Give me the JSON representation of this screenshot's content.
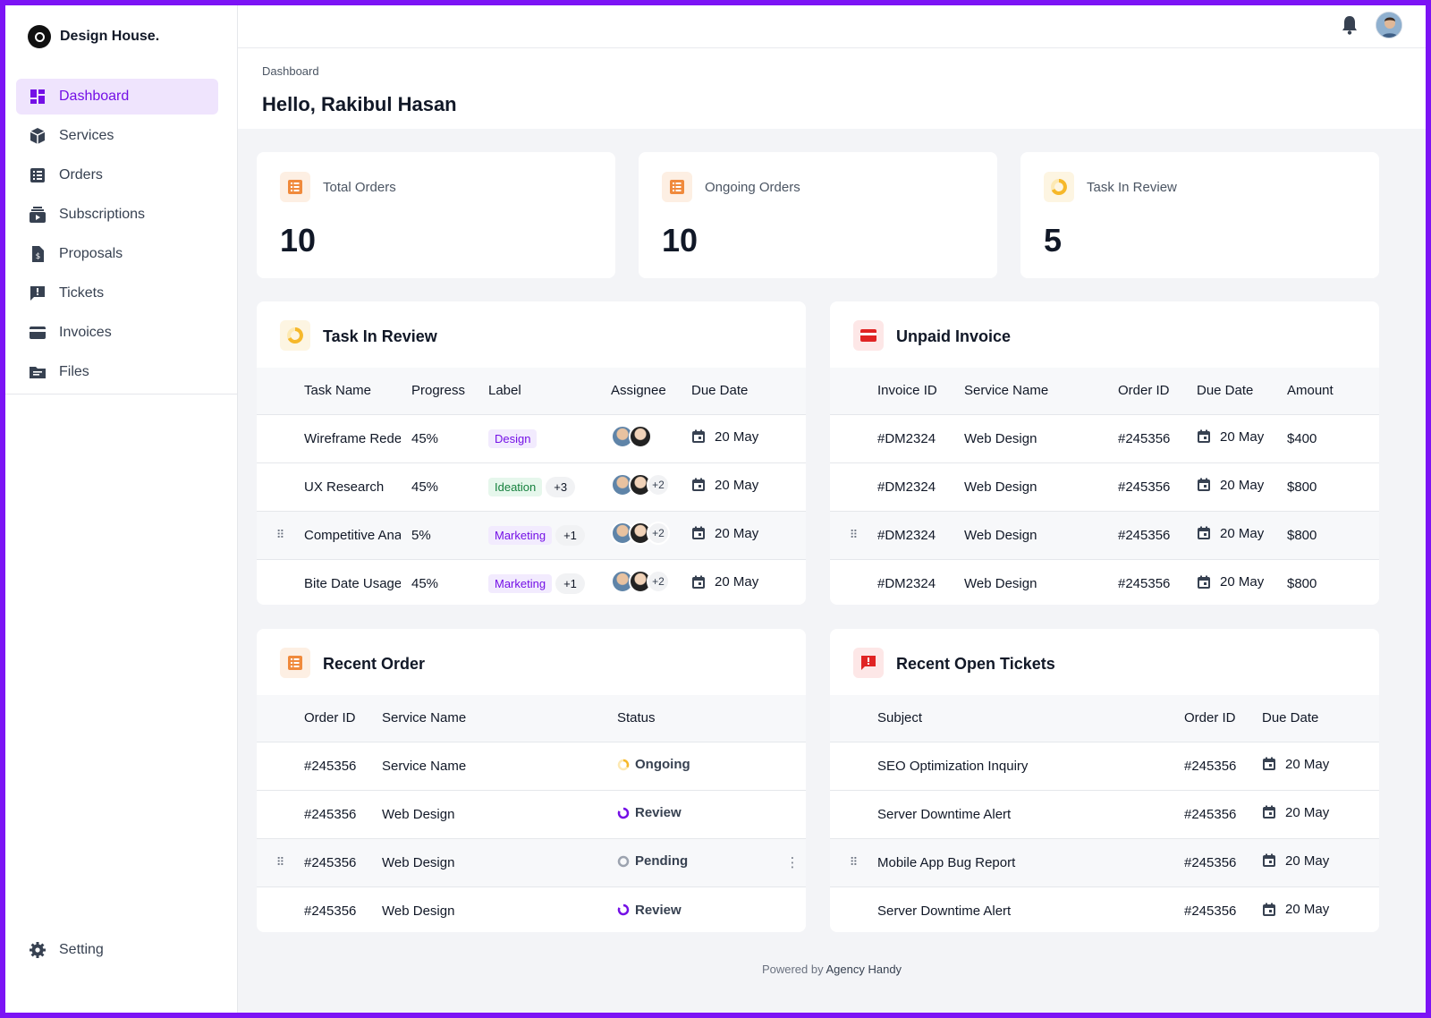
{
  "app": {
    "name": "Design House."
  },
  "nav": {
    "items": [
      {
        "label": "Dashboard",
        "icon": "dashboard-icon"
      },
      {
        "label": "Services",
        "icon": "box-icon"
      },
      {
        "label": "Orders",
        "icon": "list-icon"
      },
      {
        "label": "Subscriptions",
        "icon": "subscriptions-icon"
      },
      {
        "label": "Proposals",
        "icon": "proposal-icon"
      },
      {
        "label": "Tickets",
        "icon": "ticket-icon"
      },
      {
        "label": "Invoices",
        "icon": "card-icon"
      },
      {
        "label": "Files",
        "icon": "folder-icon"
      }
    ],
    "setting": "Setting"
  },
  "header": {
    "breadcrumb": "Dashboard",
    "greeting": "Hello, Rakibul Hasan"
  },
  "stats": [
    {
      "label": "Total Orders",
      "value": "10"
    },
    {
      "label": "Ongoing Orders",
      "value": "10"
    },
    {
      "label": "Task In Review",
      "value": "5"
    }
  ],
  "tasks": {
    "title": "Task In Review",
    "columns": [
      "Task Name",
      "Progress",
      "Label",
      "Assignee",
      "Due Date"
    ],
    "rows": [
      {
        "name": "Wireframe Redesign",
        "progress": "45%",
        "label": "Design",
        "extra_labels": "",
        "extra_assignees": "",
        "due": "20 May"
      },
      {
        "name": "UX Research",
        "progress": "45%",
        "label": "Ideation",
        "extra_labels": "+3",
        "extra_assignees": "+2",
        "due": "20 May"
      },
      {
        "name": "Competitive Analysis",
        "progress": "5%",
        "label": "Marketing",
        "extra_labels": "+1",
        "extra_assignees": "+2",
        "due": "20 May"
      },
      {
        "name": "Bite Date Usage",
        "progress": "45%",
        "label": "Marketing",
        "extra_labels": "+1",
        "extra_assignees": "+2",
        "due": "20 May"
      }
    ]
  },
  "invoices": {
    "title": "Unpaid Invoice",
    "columns": [
      "Invoice ID",
      "Service Name",
      "Order ID",
      "Due Date",
      "Amount"
    ],
    "rows": [
      {
        "invoice": "#DM2324",
        "service": "Web Design",
        "order": "#245356",
        "due": "20 May",
        "amount": "$400"
      },
      {
        "invoice": "#DM2324",
        "service": "Web Design",
        "order": "#245356",
        "due": "20 May",
        "amount": "$800"
      },
      {
        "invoice": "#DM2324",
        "service": "Web Design",
        "order": "#245356",
        "due": "20 May",
        "amount": "$800"
      },
      {
        "invoice": "#DM2324",
        "service": "Web Design",
        "order": "#245356",
        "due": "20 May",
        "amount": "$800"
      }
    ]
  },
  "orders": {
    "title": "Recent Order",
    "columns": [
      "Order ID",
      "Service Name",
      "Status"
    ],
    "rows": [
      {
        "order": "#245356",
        "service": "Service Name",
        "status": "Ongoing"
      },
      {
        "order": "#245356",
        "service": "Web Design",
        "status": "Review"
      },
      {
        "order": "#245356",
        "service": "Web Design",
        "status": "Pending"
      },
      {
        "order": "#245356",
        "service": "Web Design",
        "status": "Review"
      }
    ]
  },
  "tickets": {
    "title": "Recent Open Tickets",
    "columns": [
      "Subject",
      "Order ID",
      "Due Date"
    ],
    "rows": [
      {
        "subject": "SEO Optimization Inquiry",
        "order": "#245356",
        "due": "20 May"
      },
      {
        "subject": "Server Downtime Alert",
        "order": "#245356",
        "due": "20 May"
      },
      {
        "subject": "Mobile App Bug Report",
        "order": "#245356",
        "due": "20 May"
      },
      {
        "subject": "Server Downtime Alert",
        "order": "#245356",
        "due": "20 May"
      }
    ]
  },
  "footer": {
    "prefix": "Powered by",
    "brand": "Agency Handy"
  },
  "colors": {
    "accent": "#7410e6",
    "frame": "#7c13f5",
    "orange": "#f08a3c",
    "yellow": "#f6b82a",
    "red": "#e02424"
  }
}
